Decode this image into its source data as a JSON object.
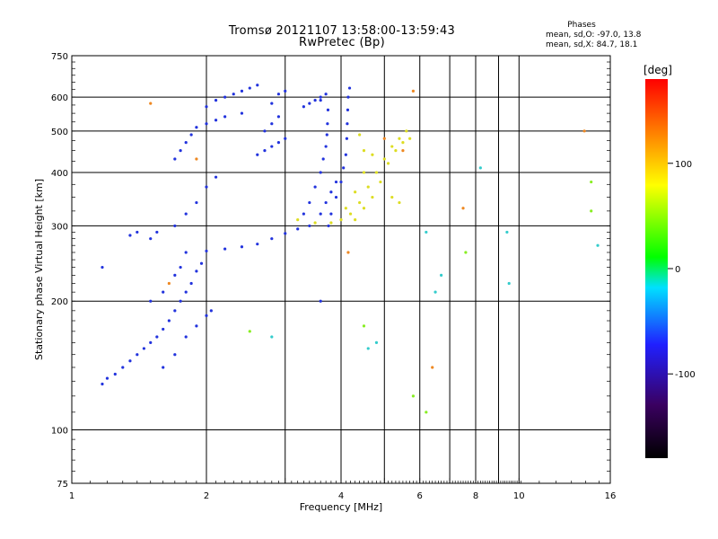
{
  "header": {
    "title_line1": "Tromsø 20121107 13:58:00-13:59:43",
    "title_line2": "RwPretec (Bp)",
    "stats_heading": "Phases",
    "stats_o": "mean, sd,O:  -97.0,  13.8",
    "stats_x": "mean, sd,X:   84.7,  18.1"
  },
  "chart_data": {
    "type": "scatter",
    "title": "Tromsø 20121107 13:58:00-13:59:43",
    "subtitle": "RwPretec (Bp)",
    "xlabel": "Frequency [MHz]",
    "ylabel": "Stationary phase Virtual Height [km]",
    "x_scale": "log",
    "y_scale": "log",
    "xlim": [
      1,
      16
    ],
    "ylim": [
      75,
      750
    ],
    "x_ticks": [
      1,
      2,
      4,
      6,
      8,
      10,
      16
    ],
    "x_minor": [
      3,
      5,
      7,
      9
    ],
    "y_ticks": [
      75,
      100,
      200,
      300,
      400,
      500,
      600,
      750
    ],
    "grid": true,
    "colorbar": {
      "label": "[deg]",
      "range": [
        -180,
        180
      ],
      "ticks": [
        100,
        0,
        -100
      ],
      "colors": [
        "#000000",
        "#3a0060",
        "#2020ff",
        "#00e0ff",
        "#00ff00",
        "#ffff00",
        "#ff8800",
        "#ff0000"
      ]
    },
    "series": [
      {
        "color": "#2233dd",
        "points": [
          [
            1.17,
            128
          ],
          [
            1.2,
            132
          ],
          [
            1.25,
            135
          ],
          [
            1.3,
            140
          ],
          [
            1.35,
            145
          ],
          [
            1.4,
            150
          ],
          [
            1.45,
            155
          ],
          [
            1.5,
            160
          ],
          [
            1.55,
            165
          ],
          [
            1.6,
            172
          ],
          [
            1.65,
            180
          ],
          [
            1.7,
            190
          ],
          [
            1.75,
            200
          ],
          [
            1.8,
            210
          ],
          [
            1.85,
            220
          ],
          [
            1.9,
            235
          ],
          [
            1.95,
            245
          ],
          [
            1.6,
            140
          ],
          [
            1.7,
            150
          ],
          [
            1.8,
            165
          ],
          [
            1.9,
            175
          ],
          [
            2.0,
            185
          ],
          [
            2.05,
            190
          ],
          [
            1.5,
            200
          ],
          [
            1.6,
            210
          ],
          [
            1.7,
            230
          ],
          [
            1.75,
            240
          ],
          [
            1.8,
            260
          ],
          [
            2.0,
            262
          ],
          [
            2.2,
            265
          ],
          [
            2.4,
            268
          ],
          [
            2.6,
            272
          ],
          [
            2.8,
            280
          ],
          [
            3.0,
            288
          ],
          [
            3.2,
            295
          ],
          [
            3.4,
            300
          ],
          [
            1.35,
            285
          ],
          [
            1.4,
            290
          ],
          [
            1.5,
            280
          ],
          [
            1.55,
            290
          ],
          [
            1.7,
            300
          ],
          [
            1.8,
            320
          ],
          [
            1.9,
            340
          ],
          [
            2.0,
            370
          ],
          [
            2.1,
            390
          ],
          [
            1.7,
            430
          ],
          [
            1.75,
            450
          ],
          [
            1.8,
            470
          ],
          [
            1.85,
            490
          ],
          [
            1.9,
            510
          ],
          [
            2.0,
            520
          ],
          [
            2.1,
            530
          ],
          [
            2.2,
            540
          ],
          [
            2.4,
            550
          ],
          [
            2.0,
            570
          ],
          [
            2.1,
            590
          ],
          [
            2.2,
            600
          ],
          [
            2.3,
            610
          ],
          [
            2.4,
            620
          ],
          [
            2.5,
            630
          ],
          [
            2.6,
            640
          ],
          [
            2.6,
            440
          ],
          [
            2.7,
            450
          ],
          [
            2.8,
            460
          ],
          [
            2.9,
            470
          ],
          [
            3.0,
            480
          ],
          [
            2.7,
            500
          ],
          [
            2.8,
            520
          ],
          [
            2.9,
            540
          ],
          [
            2.8,
            580
          ],
          [
            2.9,
            610
          ],
          [
            3.0,
            620
          ],
          [
            3.3,
            570
          ],
          [
            3.4,
            580
          ],
          [
            3.5,
            590
          ],
          [
            3.6,
            600
          ],
          [
            3.7,
            610
          ],
          [
            3.6,
            590
          ],
          [
            3.3,
            320
          ],
          [
            3.4,
            340
          ],
          [
            3.5,
            370
          ],
          [
            3.6,
            400
          ],
          [
            3.65,
            430
          ],
          [
            3.7,
            460
          ],
          [
            3.72,
            490
          ],
          [
            3.73,
            520
          ],
          [
            3.74,
            560
          ],
          [
            3.75,
            300
          ],
          [
            3.8,
            320
          ],
          [
            3.9,
            350
          ],
          [
            4.0,
            380
          ],
          [
            4.05,
            410
          ],
          [
            4.1,
            440
          ],
          [
            4.12,
            480
          ],
          [
            4.13,
            520
          ],
          [
            4.14,
            560
          ],
          [
            4.15,
            600
          ],
          [
            4.18,
            630
          ],
          [
            3.6,
            320
          ],
          [
            3.7,
            340
          ],
          [
            3.8,
            360
          ],
          [
            3.9,
            380
          ],
          [
            1.17,
            240
          ],
          [
            3.6,
            200
          ]
        ]
      },
      {
        "color": "#dddd22",
        "points": [
          [
            3.2,
            310
          ],
          [
            3.5,
            305
          ],
          [
            3.8,
            305
          ],
          [
            4.0,
            310
          ],
          [
            4.2,
            320
          ],
          [
            4.4,
            340
          ],
          [
            4.6,
            370
          ],
          [
            4.8,
            400
          ],
          [
            5.0,
            430
          ],
          [
            5.2,
            460
          ],
          [
            5.4,
            480
          ],
          [
            4.3,
            310
          ],
          [
            4.5,
            330
          ],
          [
            4.7,
            350
          ],
          [
            4.9,
            380
          ],
          [
            5.1,
            420
          ],
          [
            5.3,
            450
          ],
          [
            5.5,
            470
          ],
          [
            4.1,
            330
          ],
          [
            4.3,
            360
          ],
          [
            4.5,
            400
          ],
          [
            4.7,
            440
          ],
          [
            5.6,
            500
          ],
          [
            5.7,
            480
          ],
          [
            5.4,
            340
          ],
          [
            4.5,
            450
          ],
          [
            4.4,
            490
          ],
          [
            5.2,
            350
          ]
        ]
      },
      {
        "color": "#ee8822",
        "points": [
          [
            1.5,
            580
          ],
          [
            1.9,
            430
          ],
          [
            1.65,
            220
          ],
          [
            4.15,
            260
          ],
          [
            5.8,
            620
          ],
          [
            6.4,
            140
          ],
          [
            7.5,
            330
          ],
          [
            14,
            500
          ],
          [
            5.0,
            480
          ],
          [
            5.5,
            450
          ]
        ]
      },
      {
        "color": "#33cccc",
        "points": [
          [
            6.5,
            210
          ],
          [
            6.7,
            230
          ],
          [
            8.2,
            410
          ],
          [
            9.4,
            290
          ],
          [
            15,
            270
          ],
          [
            2.8,
            165
          ],
          [
            4.6,
            155
          ],
          [
            4.8,
            160
          ],
          [
            6.2,
            290
          ],
          [
            9.5,
            220
          ]
        ]
      },
      {
        "color": "#88ee22",
        "points": [
          [
            5.8,
            120
          ],
          [
            6.2,
            110
          ],
          [
            2.5,
            170
          ],
          [
            14.5,
            380
          ],
          [
            14.5,
            325
          ],
          [
            7.6,
            260
          ],
          [
            4.5,
            175
          ]
        ]
      }
    ]
  }
}
